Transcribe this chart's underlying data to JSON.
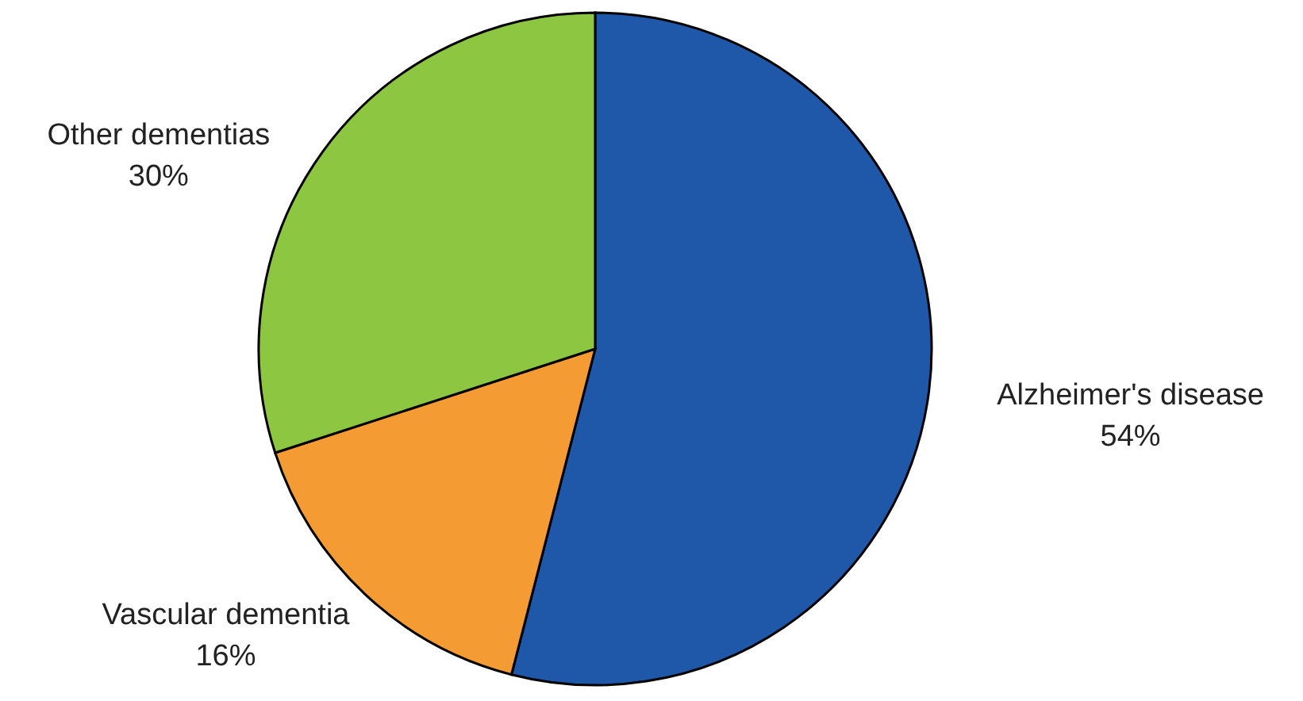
{
  "chart_data": {
    "type": "pie",
    "categories": [
      "Alzheimer's disease",
      "Vascular dementia",
      "Other dementias"
    ],
    "values": [
      54,
      16,
      30
    ],
    "colors": [
      "#1f58a8",
      "#f49b33",
      "#8dc641"
    ],
    "value_labels": [
      "54%",
      "16%",
      "30%"
    ]
  }
}
